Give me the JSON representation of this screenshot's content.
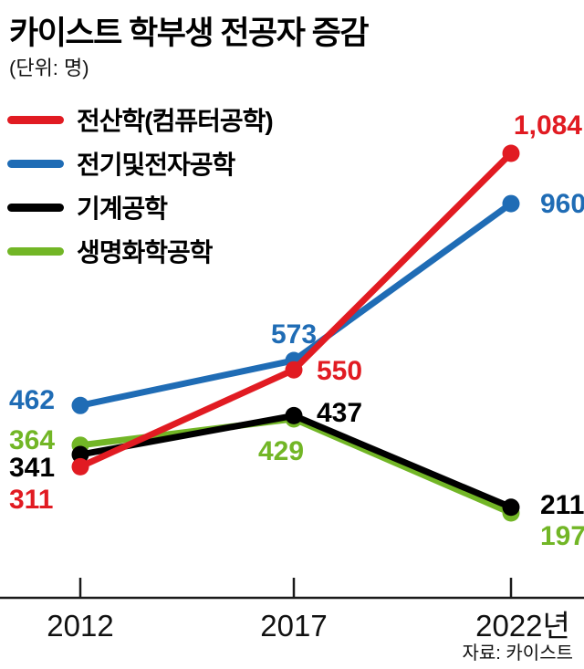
{
  "header": {
    "title": "카이스트 학부생 전공자 증감",
    "subtitle": "(단위: 명)"
  },
  "source": "자료: 카이스트",
  "chart_data": {
    "type": "line",
    "title": "카이스트 학부생 전공자 증감",
    "unit": "명",
    "xlabel": "",
    "ylabel": "명",
    "categories": [
      "2012",
      "2017",
      "2022년"
    ],
    "series": [
      {
        "name": "전산학(컴퓨터공학)",
        "color": "#e11b22",
        "values": [
          311,
          550,
          1084
        ],
        "labels": [
          "311",
          "550",
          "1,084"
        ]
      },
      {
        "name": "전기및전자공학",
        "color": "#1f6cb5",
        "values": [
          462,
          573,
          960
        ],
        "labels": [
          "462",
          "573",
          "960"
        ]
      },
      {
        "name": "기계공학",
        "color": "#000000",
        "values": [
          341,
          437,
          211
        ],
        "labels": [
          "341",
          "437",
          "211"
        ]
      },
      {
        "name": "생명화학공학",
        "color": "#72b626",
        "values": [
          364,
          429,
          197
        ],
        "labels": [
          "364",
          "429",
          "197"
        ]
      }
    ],
    "value_range": [
      197,
      1084
    ],
    "grid": false,
    "legend_position": "top-left",
    "axis_color": "#1a1a1a"
  }
}
